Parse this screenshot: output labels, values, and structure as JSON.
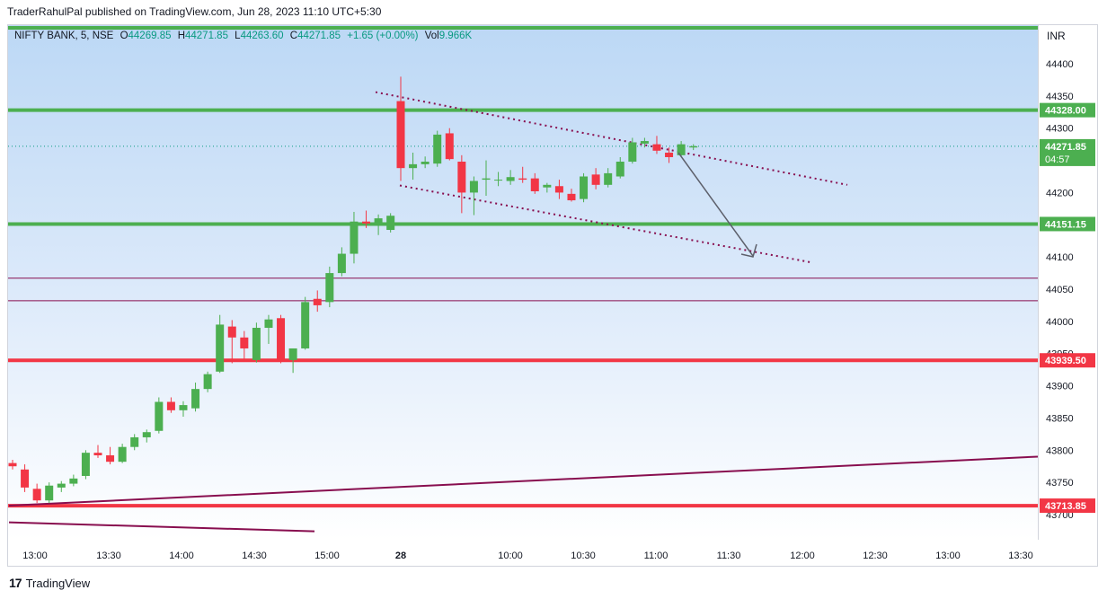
{
  "publisher_line": "TraderRahulPal published on TradingView.com, Jun 28, 2023 11:10 UTC+5:30",
  "legend": {
    "symbol": "NIFTY BANK, 5, NSE",
    "open_label": "O",
    "open": "44269.85",
    "high_label": "H",
    "high": "44271.85",
    "low_label": "L",
    "low": "44263.60",
    "close_label": "C",
    "close": "44271.85",
    "change": "+1.65 (+0.00%)",
    "vol_label": "Vol",
    "vol": "9.966K"
  },
  "currency": "INR",
  "branding": {
    "logo_text": "TradingView",
    "logo_icon": "tradingview-logo-icon"
  },
  "colors": {
    "up": "#4caf50",
    "down": "#f23645",
    "support": "#4caf50",
    "resistance": "#f23645",
    "trend": "#880e4f",
    "arrow": "#5d606b",
    "price_line": "#089981"
  },
  "chart_data": {
    "type": "candlestick",
    "title": "",
    "ylim": [
      43680,
      44440
    ],
    "y_ticks": [
      43700,
      43750,
      43800,
      43850,
      43900,
      43950,
      44000,
      44050,
      44100,
      44150,
      44200,
      44250,
      44300,
      44350,
      44400
    ],
    "x_ticks": [
      "13:00",
      "13:30",
      "14:00",
      "14:30",
      "15:00",
      "28",
      "10:00",
      "10:30",
      "11:00",
      "11:30",
      "12:00",
      "12:30",
      "13:00",
      "13:30"
    ],
    "x_ticks_bold": [
      "28"
    ],
    "current_price": "44271.85",
    "countdown": "04:57",
    "candles": [
      {
        "o": 43780,
        "h": 43785,
        "l": 43770,
        "c": 43775
      },
      {
        "o": 43770,
        "h": 43778,
        "l": 43735,
        "c": 43742
      },
      {
        "o": 43740,
        "h": 43748,
        "l": 43718,
        "c": 43722
      },
      {
        "o": 43722,
        "h": 43750,
        "l": 43718,
        "c": 43745
      },
      {
        "o": 43742,
        "h": 43752,
        "l": 43735,
        "c": 43748
      },
      {
        "o": 43748,
        "h": 43762,
        "l": 43744,
        "c": 43756
      },
      {
        "o": 43760,
        "h": 43800,
        "l": 43755,
        "c": 43796
      },
      {
        "o": 43796,
        "h": 43808,
        "l": 43788,
        "c": 43792
      },
      {
        "o": 43792,
        "h": 43805,
        "l": 43778,
        "c": 43782
      },
      {
        "o": 43782,
        "h": 43810,
        "l": 43780,
        "c": 43805
      },
      {
        "o": 43805,
        "h": 43825,
        "l": 43800,
        "c": 43820
      },
      {
        "o": 43820,
        "h": 43832,
        "l": 43812,
        "c": 43828
      },
      {
        "o": 43830,
        "h": 43882,
        "l": 43826,
        "c": 43875
      },
      {
        "o": 43875,
        "h": 43882,
        "l": 43858,
        "c": 43862
      },
      {
        "o": 43862,
        "h": 43876,
        "l": 43852,
        "c": 43870
      },
      {
        "o": 43865,
        "h": 43905,
        "l": 43860,
        "c": 43895
      },
      {
        "o": 43895,
        "h": 43922,
        "l": 43890,
        "c": 43918
      },
      {
        "o": 43922,
        "h": 44010,
        "l": 43920,
        "c": 43995
      },
      {
        "o": 43992,
        "h": 44002,
        "l": 43935,
        "c": 43975
      },
      {
        "o": 43975,
        "h": 43985,
        "l": 43940,
        "c": 43958
      },
      {
        "o": 43940,
        "h": 43998,
        "l": 43936,
        "c": 43990
      },
      {
        "o": 43990,
        "h": 44010,
        "l": 43965,
        "c": 44003
      },
      {
        "o": 44005,
        "h": 44010,
        "l": 43935,
        "c": 43940
      },
      {
        "o": 43940,
        "h": 43958,
        "l": 43920,
        "c": 43958
      },
      {
        "o": 43958,
        "h": 44038,
        "l": 43956,
        "c": 44030
      },
      {
        "o": 44035,
        "h": 44048,
        "l": 44015,
        "c": 44025
      },
      {
        "o": 44030,
        "h": 44085,
        "l": 44022,
        "c": 44075
      },
      {
        "o": 44075,
        "h": 44115,
        "l": 44070,
        "c": 44105
      },
      {
        "o": 44105,
        "h": 44170,
        "l": 44090,
        "c": 44155
      },
      {
        "o": 44155,
        "h": 44172,
        "l": 44145,
        "c": 44152
      },
      {
        "o": 44150,
        "h": 44166,
        "l": 44134,
        "c": 44160
      },
      {
        "o": 44142,
        "h": 44168,
        "l": 44138,
        "c": 44164
      },
      {
        "o": 44342,
        "h": 44380,
        "l": 44218,
        "c": 44238
      },
      {
        "o": 44238,
        "h": 44262,
        "l": 44220,
        "c": 44244
      },
      {
        "o": 44244,
        "h": 44256,
        "l": 44238,
        "c": 44248
      },
      {
        "o": 44245,
        "h": 44296,
        "l": 44240,
        "c": 44290
      },
      {
        "o": 44292,
        "h": 44300,
        "l": 44250,
        "c": 44252
      },
      {
        "o": 44248,
        "h": 44258,
        "l": 44168,
        "c": 44200
      },
      {
        "o": 44200,
        "h": 44225,
        "l": 44165,
        "c": 44218
      },
      {
        "o": 44220,
        "h": 44250,
        "l": 44195,
        "c": 44222
      },
      {
        "o": 44220,
        "h": 44232,
        "l": 44210,
        "c": 44220
      },
      {
        "o": 44218,
        "h": 44235,
        "l": 44212,
        "c": 44224
      },
      {
        "o": 44222,
        "h": 44240,
        "l": 44215,
        "c": 44220
      },
      {
        "o": 44222,
        "h": 44230,
        "l": 44198,
        "c": 44202
      },
      {
        "o": 44208,
        "h": 44215,
        "l": 44200,
        "c": 44212
      },
      {
        "o": 44210,
        "h": 44220,
        "l": 44190,
        "c": 44200
      },
      {
        "o": 44198,
        "h": 44206,
        "l": 44186,
        "c": 44188
      },
      {
        "o": 44190,
        "h": 44230,
        "l": 44185,
        "c": 44225
      },
      {
        "o": 44228,
        "h": 44238,
        "l": 44205,
        "c": 44212
      },
      {
        "o": 44212,
        "h": 44238,
        "l": 44208,
        "c": 44230
      },
      {
        "o": 44225,
        "h": 44255,
        "l": 44222,
        "c": 44248
      },
      {
        "o": 44248,
        "h": 44285,
        "l": 44245,
        "c": 44278
      },
      {
        "o": 44276,
        "h": 44285,
        "l": 44270,
        "c": 44280
      },
      {
        "o": 44275,
        "h": 44288,
        "l": 44260,
        "c": 44265
      },
      {
        "o": 44262,
        "h": 44270,
        "l": 44246,
        "c": 44255
      },
      {
        "o": 44258,
        "h": 44280,
        "l": 44255,
        "c": 44275
      },
      {
        "o": 44270,
        "h": 44275,
        "l": 44266,
        "c": 44272
      }
    ],
    "horizontal_levels": [
      {
        "price": 44328.0,
        "label": "44328.00",
        "kind": "support"
      },
      {
        "price": 44151.15,
        "label": "44151.15",
        "kind": "support"
      },
      {
        "price": 43939.5,
        "label": "43939.50",
        "kind": "resistance"
      },
      {
        "price": 43713.85,
        "label": "43713.85",
        "kind": "resistance"
      },
      {
        "price": 44067,
        "label": "",
        "kind": "thin"
      },
      {
        "price": 44032,
        "label": "",
        "kind": "thin"
      }
    ],
    "trend_lines": [
      {
        "x1": 10,
        "y1": 43714,
        "x2": 1155,
        "y2": 43790,
        "style": "solid"
      },
      {
        "x1": 10,
        "y1": 43688,
        "x2": 350,
        "y2": 43674,
        "style": "solid"
      },
      {
        "x1": 418,
        "y1": 44356,
        "x2": 943,
        "y2": 44212,
        "style": "dotted"
      },
      {
        "x1": 445,
        "y1": 44211,
        "x2": 905,
        "y2": 44091,
        "style": "dotted"
      }
    ]
  }
}
